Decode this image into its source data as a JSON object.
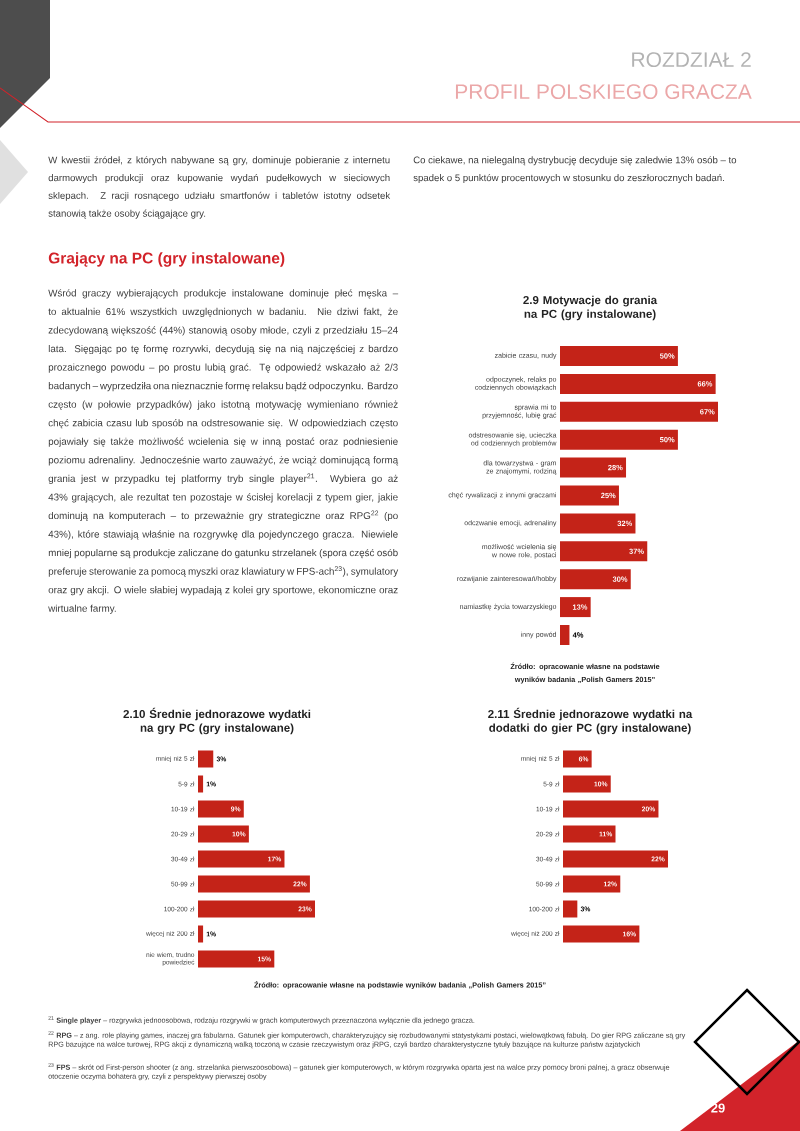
{
  "chart_data": [
    {
      "type": "other",
      "title": "ROZDZIAŁ 2",
      "subtitle": "PROFIL POLSKIEGO GRACZA",
      "annotations": [
        "W kwestii źródeł, z których nabywane są gry, dominuje pobieranie z internetu darmowych produkcji oraz kupowanie wydań pudełkowych w sieciowych sklepach. Z racji rosnącego udziału smartfonów i tabletów istotny odsetek stanowią także osoby ściągające gry.",
        "Co ciekawe, na nielegalną dystrybucję decyduje się zaledwie 13% osób – to spadek o 5 punktów procentowych w stosunku do zeszłorocznych badań.",
        "Grający na PC (gry instalowane)",
        "Wśród graczy wybierających produkcje instalowane dominuje płeć męska – to aktualnie 61% wszystkich uwzględnionych w badaniu. Nie dziwi fakt, że zdecydowaną większość (44%) stanowią osoby młode, czyli z przedziału 15–24 lata. Sięgając po tę formę rozrywki, decydują się na nią najczęściej z bardzo prozaicznego powodu – po prostu lubią grać. Tę odpowiedź wskazało aż 2/3 badanych – wyprzedziła ona nieznacznie formę relaksu bądź odpoczynku. Bardzo często (w połowie przypadków) jako istotną motywację wymieniano również chęć zabicia czasu lub sposób na odstresowanie się. W odpowiedziach często pojawiały się także możliwość wcielenia się w inną postać oraz podniesienie poziomu adrenaliny. Jednocześnie warto zauważyć, że wciąż dominującą formą grania jest w przypadku tej platformy tryb single player$^{21}$. Wybiera go aż 43% grających, ale rezultat ten pozostaje w ścisłej korelacji z typem gier, jakie dominują na komputerach – to przeważnie gry strategiczne oraz RPG$^{22}$ (po 43%), które stawiają właśnie na rozgrywkę dla pojedynczego gracza. Niewiele mniej popularne są produkcje zaliczane do gatunku strzelanek (spora część osób preferuje sterowanie za pomocą myszki oraz klawiatury w FPS-ach$^{23}$), symulatory oraz gry akcji. O wiele słabiej wypadają z kolei gry sportowe, ekonomiczne oraz wirtualne farmy.",
        "$^{21}$ **Single player** – rozgrywka jednoosobowa, rodzaju rozgrywki w grach komputerowych przeznaczona wyłącznie dla jednego gracza.",
        "$^{22}$ **RPG** – z ang. role playing games, inaczej gra fabularna. Gatunek gier komputerowch, charakteryzujący się rozbudowanymi statystykami postaci, wielowątkową fabułą. Do gier RPG zaliczane są gry RPG bazujące na walce turowej, RPG akcji z dynamiczną walką toczoną w czasie rzeczywistym oraz jRPG, czyli bardzo charakterystyczne tytuły bazujące na kulturze państw azjatyckich",
        "$^{23}$ **FPS** – skrót od First-person shooter (z ang. strzelanka pierwszoosobowa) – gatunek gier komputerowych, w którym rozgrywka oparta jest na walce przy pomocy broni palnej, a gracz obserwuje otoczenie oczyma bohatera gry, czyli z perspektywy pierwszej osoby",
        "29"
      ]
    },
    {
      "type": "bar",
      "orientation": "horizontal",
      "title": "2.9 Motywacje do grania na PC (gry instalowane)",
      "color": "#c42318",
      "categories": [
        "zabicie czasu, nudy",
        "odpoczynek, relaks po codziennych obowiązkach",
        "sprawia mi to przyjemność, lubię grać",
        "odstresowanie się, ucieczka od codziennych problemów",
        "dla towarzystwa - gram ze znajomymi, rodziną",
        "chęć rywalizacji z innymi graczami",
        "odczwanie emocji, adrenaliny",
        "możliwość wcielenia się w nowe role, postaci",
        "rozwijanie zainteresowań/hobby",
        "namiastkę życia towarzyskiego",
        "inny powód"
      ],
      "values": [
        50,
        66,
        67,
        50,
        28,
        25,
        32,
        37,
        30,
        13,
        4
      ],
      "value_labels": [
        "50%",
        "66%",
        "67%",
        "50%",
        "28%",
        "25%",
        "32%",
        "37%",
        "30%",
        "13%",
        "4%"
      ],
      "annotations": [
        "Źródło: opracowanie własne na podstawie wyników badania „Polish Gamers 2015”"
      ]
    },
    {
      "type": "bar",
      "orientation": "horizontal",
      "title": "2.10 Średnie jednorazowe wydatki na gry PC (gry instalowane)",
      "color": "#c42318",
      "categories": [
        "mniej niż 5 zł",
        "5-9 zł",
        "10-19 zł",
        "20-29 zł",
        "30-49 zł",
        "50-99 zł",
        "100-200 zł",
        "więcej niż 200 zł",
        "nie wiem, trudno powiedzieć"
      ],
      "values": [
        3,
        1,
        9,
        10,
        17,
        22,
        23,
        1,
        15
      ],
      "value_labels": [
        "3%",
        "1%",
        "9%",
        "10%",
        "17%",
        "22%",
        "23%",
        "1%",
        "15%"
      ],
      "annotations": [
        "Źródło: opracowanie własne na podstawie wyników badania „Polish Gamers 2015”"
      ]
    },
    {
      "type": "bar",
      "orientation": "horizontal",
      "title": "2.11 Średnie jednorazowe wydatki na dodatki do gier PC (gry instalowane)",
      "color": "#c42318",
      "categories": [
        "mniej niż 5 zł",
        "5-9 zł",
        "10-19 zł",
        "20-29 zł",
        "30-49 zł",
        "50-99 zł",
        "100-200 zł",
        "więcej niż 200 zł"
      ],
      "values": [
        6,
        10,
        20,
        11,
        22,
        12,
        3,
        16
      ],
      "value_labels": [
        "6%",
        "10%",
        "20%",
        "11%",
        "22%",
        "12%",
        "3%",
        "16%"
      ]
    }
  ]
}
